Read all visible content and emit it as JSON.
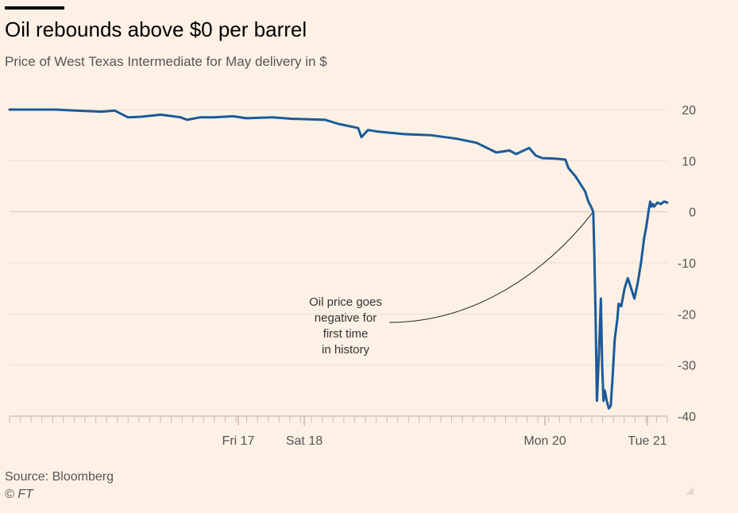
{
  "header": {
    "title": "Oil rebounds above $0 per barrel",
    "subtitle": "Price of West Texas Intermediate for May delivery in $"
  },
  "footer": {
    "source": "Source: Bloomberg",
    "copyright": "© FT"
  },
  "colors": {
    "background": "#fdf1e5",
    "line": "#1a5a9a",
    "grid": "#eadfd3",
    "text_muted": "#555555"
  },
  "chart_data": {
    "type": "line",
    "title": "Oil rebounds above $0 per barrel",
    "subtitle": "Price of West Texas Intermediate for May delivery in $",
    "xlabel": "",
    "ylabel": "",
    "ylim": [
      -40,
      20
    ],
    "y_ticks": [
      20,
      10,
      0,
      -10,
      -20,
      -30,
      -40
    ],
    "x_tick_labels": [
      "Fri 17",
      "Sat 18",
      "Mon 20",
      "Tue 21"
    ],
    "grid": true,
    "legend": "none",
    "annotation": {
      "text_lines": [
        "Oil price goes",
        "negative for",
        "first time",
        "in history"
      ],
      "points_to": {
        "x": 0.8875,
        "y": 0.0
      }
    },
    "series": [
      {
        "x": [
          0.0,
          0.03,
          0.07,
          0.1,
          0.14,
          0.16,
          0.18,
          0.2,
          0.23,
          0.26,
          0.27,
          0.29,
          0.31,
          0.34,
          0.36,
          0.4,
          0.43,
          0.48,
          0.5,
          0.53,
          0.535,
          0.545,
          0.56,
          0.6,
          0.64,
          0.68,
          0.71,
          0.74,
          0.76,
          0.77,
          0.79,
          0.8,
          0.81,
          0.83,
          0.845,
          0.85,
          0.86,
          0.87,
          0.875,
          0.88,
          0.884,
          0.8875,
          0.889,
          0.891,
          0.893,
          0.896,
          0.899,
          0.901,
          0.903,
          0.905,
          0.908,
          0.911,
          0.914,
          0.917,
          0.92,
          0.924,
          0.926,
          0.93,
          0.935,
          0.94,
          0.945,
          0.95,
          0.955,
          0.96,
          0.965,
          0.968,
          0.972,
          0.974,
          0.976,
          0.978,
          0.98,
          0.985,
          0.99,
          0.995,
          1.0
        ],
        "values": [
          20,
          20,
          20,
          19.8,
          19.6,
          19.8,
          18.5,
          18.6,
          19.0,
          18.5,
          18.0,
          18.5,
          18.5,
          18.7,
          18.3,
          18.5,
          18.2,
          18.0,
          17.2,
          16.4,
          14.6,
          16.0,
          15.7,
          15.2,
          15.0,
          14.3,
          13.5,
          11.6,
          12.0,
          11.3,
          12.5,
          11.0,
          10.5,
          10.4,
          10.2,
          8.5,
          7.0,
          5.0,
          4.0,
          2.0,
          1.0,
          0.0,
          -8.0,
          -20.0,
          -37.0,
          -28.0,
          -17.0,
          -30.0,
          -37.0,
          -35.0,
          -37.0,
          -38.5,
          -38.0,
          -32.0,
          -25.0,
          -21.0,
          -18.0,
          -18.5,
          -15.0,
          -13.0,
          -15.0,
          -17.0,
          -14.0,
          -10.0,
          -5.0,
          -3.0,
          0.5,
          2.0,
          1.0,
          1.5,
          1.0,
          1.8,
          1.5,
          2.0,
          1.8
        ]
      }
    ]
  }
}
